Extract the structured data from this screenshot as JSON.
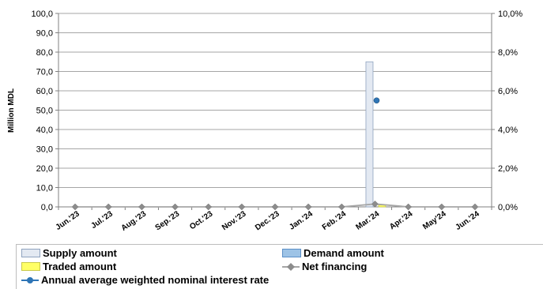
{
  "chart_data": {
    "type": "bar",
    "categories": [
      "Jun.'23",
      "Jul.'23",
      "Aug.'23",
      "Sep.'23",
      "Oct.'23",
      "Nov.'23",
      "Dec.'23",
      "Jan.'24",
      "Feb.'24",
      "Mar.'24",
      "Apr.'24",
      "May'24",
      "Jun.'24"
    ],
    "ylabel": "Million MDL",
    "ylim": [
      0,
      100
    ],
    "y_ticks": [
      "0,0",
      "10,0",
      "20,0",
      "30,0",
      "40,0",
      "50,0",
      "60,0",
      "70,0",
      "80,0",
      "90,0",
      "100,0"
    ],
    "y2lim": [
      0,
      10
    ],
    "y2_ticks": [
      "0,0%",
      "2,0%",
      "4,0%",
      "6,0%",
      "8,0%",
      "10,0%"
    ],
    "grid": true,
    "legend_position": "bottom",
    "series": [
      {
        "name": "Supply amount",
        "type": "bar",
        "color": "#e3e9f2",
        "values": [
          0,
          0,
          0,
          0,
          0,
          0,
          0,
          0,
          0,
          75,
          0,
          0,
          0
        ]
      },
      {
        "name": "Demand amount",
        "type": "bar",
        "color": "#9dc3e6",
        "values": [
          0,
          0,
          0,
          0,
          0,
          0,
          0,
          0,
          0,
          0,
          0,
          0,
          0
        ]
      },
      {
        "name": "Traded amount",
        "type": "bar",
        "color": "#ffff66",
        "values": [
          0,
          0,
          0,
          0,
          0,
          0,
          0,
          0,
          0,
          1,
          0,
          0,
          0
        ]
      },
      {
        "name": "Net financing",
        "type": "line",
        "color": "#a6a6a6",
        "values": [
          0,
          0,
          0,
          0,
          0,
          0,
          0,
          0,
          0,
          1.5,
          0,
          0,
          0
        ]
      },
      {
        "name": "Annual average weighted nominal interest rate",
        "type": "scatter",
        "axis": "right",
        "color": "#2e75b6",
        "values": [
          null,
          null,
          null,
          null,
          null,
          null,
          null,
          null,
          null,
          5.5,
          null,
          null,
          null
        ]
      }
    ]
  }
}
